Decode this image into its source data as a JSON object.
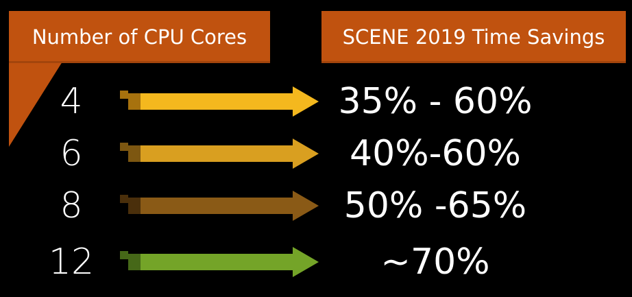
{
  "headers": {
    "left": "Number of CPU Cores",
    "right": "SCENE 2019 Time Savings"
  },
  "colors": {
    "header_bg": "#c0520f",
    "background": "#000000",
    "text": "#ffffff"
  },
  "rows": [
    {
      "cores": "4",
      "savings": "35% - 60%",
      "arrow_color": "#f4b81e",
      "arrow_shade": "#a7720e"
    },
    {
      "cores": "6",
      "savings": "40%-60%",
      "arrow_color": "#d99f20",
      "arrow_shade": "#7d5711"
    },
    {
      "cores": "8",
      "savings": "50% -65%",
      "arrow_color": "#8a5a16",
      "arrow_shade": "#4a2f0b"
    },
    {
      "cores": "12",
      "savings": "~70%",
      "arrow_color": "#74a428",
      "arrow_shade": "#466818"
    }
  ]
}
